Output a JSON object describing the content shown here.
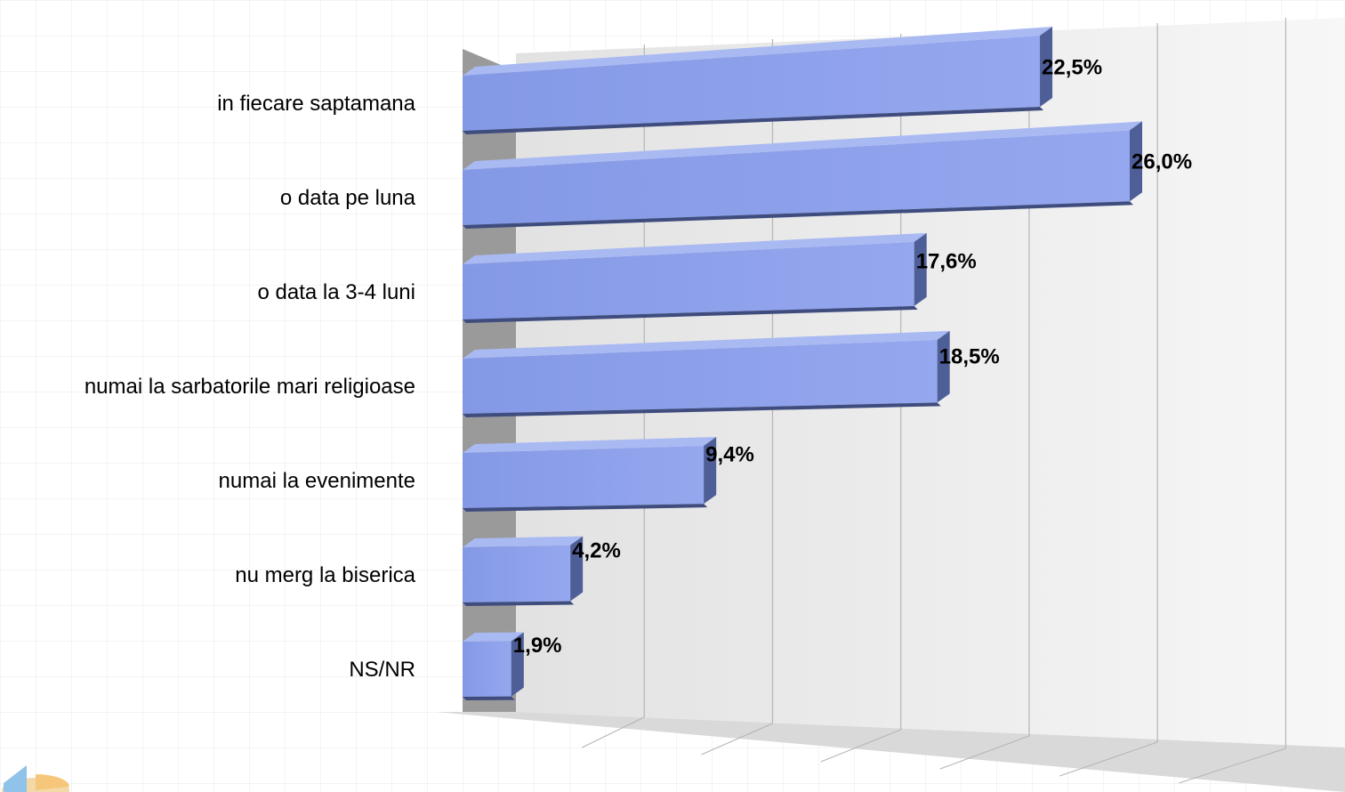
{
  "chart_data": {
    "type": "bar",
    "orientation": "horizontal",
    "three_d": true,
    "categories": [
      "in fiecare saptamana",
      "o data pe luna",
      "o data la 3-4 luni",
      "numai la sarbatorile mari religioase",
      "numai la evenimente",
      "nu merg la biserica",
      "NS/NR"
    ],
    "values": [
      22.5,
      26.0,
      17.6,
      18.5,
      9.4,
      4.2,
      1.9
    ],
    "value_labels": [
      "22,5%",
      "26,0%",
      "17,6%",
      "18,5%",
      "9,4%",
      "4,2%",
      "1,9%"
    ],
    "xlim": [
      0,
      30
    ],
    "grid": true,
    "legend": "none",
    "colors": {
      "bar_face": "#8b9fe8",
      "bar_top": "#a9b9f2",
      "bar_side": "#4e5e96",
      "floor": "#d9d9d9",
      "back_wall": "#ececec",
      "side_wall": "#9a9a9a"
    }
  },
  "decor": {
    "logo_icon": "pie-chart-logo-icon"
  }
}
